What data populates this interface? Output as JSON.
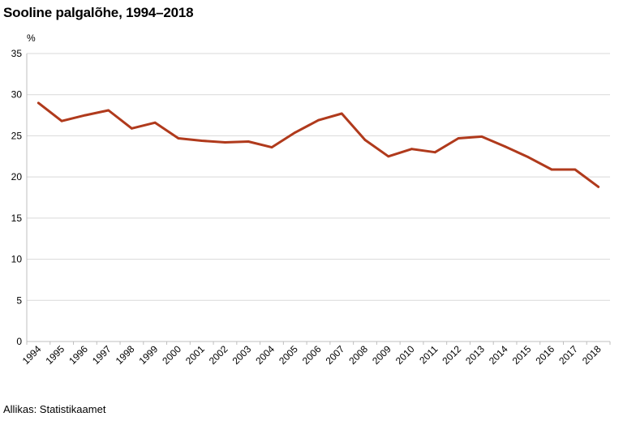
{
  "source": "Allikas: Statistikaamet",
  "colors": {
    "line": "#b03a1c",
    "grid": "#d9d9d9",
    "axis": "#bfbfbf"
  },
  "chart_data": {
    "type": "line",
    "title": "Sooline palgalõhe, 1994–2018",
    "unit_label": "%",
    "x": [
      "1994",
      "1995",
      "1996",
      "1997",
      "1998",
      "1999",
      "2000",
      "2001",
      "2002",
      "2003",
      "2004",
      "2005",
      "2006",
      "2007",
      "2008",
      "2009",
      "2010",
      "2011",
      "2012",
      "2013",
      "2014",
      "2015",
      "2016",
      "2017",
      "2018"
    ],
    "series": [
      {
        "values": [
          29.0,
          26.8,
          27.5,
          28.1,
          25.9,
          26.6,
          24.7,
          24.4,
          24.2,
          24.3,
          23.6,
          25.4,
          26.9,
          27.7,
          24.5,
          22.5,
          23.4,
          23.0,
          24.7,
          24.9,
          23.7,
          22.4,
          20.9,
          20.9,
          18.8
        ]
      }
    ],
    "ylim": [
      0,
      35
    ],
    "yticks": [
      0,
      5,
      10,
      15,
      20,
      25,
      30,
      35
    ],
    "grid": true
  }
}
